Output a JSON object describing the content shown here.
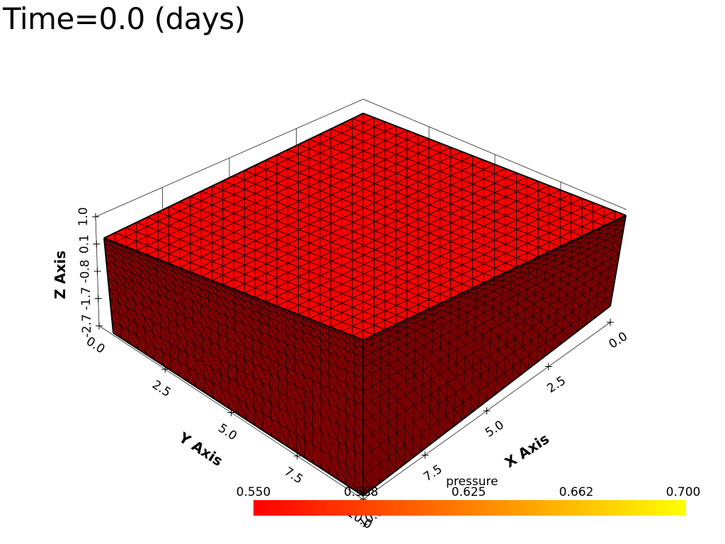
{
  "title": "Time=0.0 (days)",
  "colors": {
    "top_face": "#ff0000",
    "side_face": "#820000",
    "front_face": "#7a0000",
    "mesh_line": "#000000",
    "colormap_start": "#ff0000",
    "colormap_mid": "#ff8000",
    "colormap_end": "#ffff00"
  },
  "axes": {
    "x": {
      "title": "X Axis",
      "ticks": [
        "0.0",
        "2.5",
        "5.0",
        "7.5",
        "10.0"
      ]
    },
    "y": {
      "title": "Y Axis",
      "ticks": [
        "0.0",
        "2.5",
        "5.0",
        "7.5",
        "10.0"
      ]
    },
    "z": {
      "title": "Z Axis",
      "ticks": [
        "-2.7",
        "-1.7",
        "-0.8",
        "0.1",
        "1.0"
      ]
    }
  },
  "scalar_bar": {
    "title": "pressure",
    "ticks": [
      "0.550",
      "0.588",
      "0.625",
      "0.662",
      "0.700"
    ],
    "range": [
      0.55,
      0.7
    ]
  }
}
